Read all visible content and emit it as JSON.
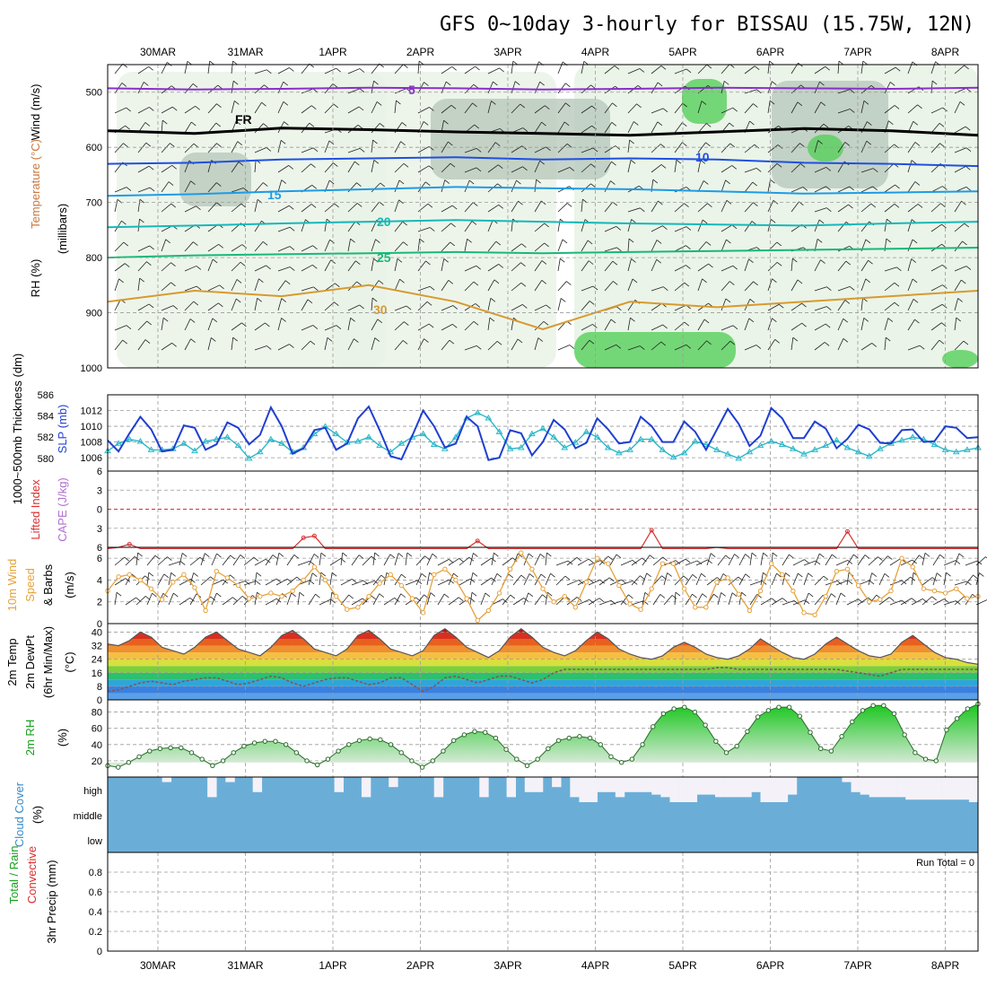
{
  "title": "GFS 0~10day 3-hourly for BISSAU (15.75W, 12N)",
  "dates": [
    "30MAR",
    "31MAR",
    "1APR",
    "2APR",
    "3APR",
    "4APR",
    "5APR",
    "6APR",
    "7APR",
    "8APR"
  ],
  "colors": {
    "temp_line": "#8b2fc9",
    "freezing": "#000000",
    "t5": "#1f4fe0",
    "t10": "#1e9be6",
    "t15": "#16b8b8",
    "t20": "#18b878",
    "t25": "#d89a2e",
    "rh_green": "#2ecc40",
    "slp": "#1f3fd0",
    "thickness": "#2ab7c8",
    "lifted": "#d93030",
    "wind10": "#e6a23a",
    "cloud": "#6aaed8"
  },
  "chart_data": [
    {
      "type": "area",
      "panel": "upper-air",
      "ylabel_parts": [
        "RH (%)",
        "Temperature (°C)",
        "Wind (m/s)"
      ],
      "ylabel_unit": "(millibars)",
      "y_ticks": [
        500,
        600,
        700,
        800,
        900,
        1000
      ],
      "ylim": [
        450,
        1000
      ],
      "y_reversed": true,
      "contour_labels": [
        "5",
        "FR",
        "10",
        "15",
        "20",
        "25",
        "30"
      ],
      "series": [
        {
          "name": "-5",
          "level_mb": [
            493,
            495,
            494,
            492,
            493,
            495,
            494,
            492,
            493,
            494,
            492
          ]
        },
        {
          "name": "FR",
          "level_mb": [
            570,
            575,
            565,
            568,
            572,
            575,
            578,
            572,
            566,
            570,
            578
          ]
        },
        {
          "name": "5",
          "level_mb": [
            630,
            628,
            622,
            620,
            618,
            622,
            620,
            622,
            628,
            630,
            634
          ]
        },
        {
          "name": "10",
          "level_mb": [
            688,
            685,
            680,
            676,
            672,
            674,
            676,
            680,
            684,
            682,
            680
          ]
        },
        {
          "name": "15",
          "level_mb": [
            745,
            742,
            738,
            735,
            732,
            735,
            738,
            740,
            742,
            738,
            735
          ]
        },
        {
          "name": "20",
          "level_mb": [
            800,
            796,
            794,
            792,
            790,
            792,
            790,
            788,
            786,
            784,
            782
          ]
        },
        {
          "name": "25",
          "level_mb": [
            880,
            860,
            870,
            850,
            880,
            930,
            880,
            890,
            880,
            870,
            860
          ]
        }
      ]
    },
    {
      "type": "line",
      "panel": "slp-thickness",
      "ylabel_left": "1000~500mb Thickness (dm)",
      "ylabel_right": "SLP (mb)",
      "thickness_ticks": [
        580,
        582,
        584,
        586
      ],
      "slp_ticks": [
        1006,
        1008,
        1010,
        1012
      ],
      "thickness_ylim": [
        578.8,
        586
      ],
      "slp_ylim": [
        1004.3,
        1014
      ],
      "slp": [
        1008.2,
        1006.8,
        1009.1,
        1011.2,
        1009.6,
        1006.8,
        1007.0,
        1010.1,
        1009.8,
        1007.0,
        1007.7,
        1010.5,
        1009.8,
        1007.7,
        1008.9,
        1012.4,
        1010.0,
        1006.5,
        1007.2,
        1009.5,
        1009.8,
        1007.0,
        1007.8,
        1011.0,
        1012.5,
        1009.5,
        1006.2,
        1005.8,
        1008.8,
        1012.0,
        1010.0,
        1007.3,
        1007.8,
        1011.2,
        1010.0,
        1005.7,
        1006.0,
        1009.5,
        1009.1,
        1006.3,
        1008.0,
        1010.8,
        1009.6,
        1007.2,
        1007.9,
        1011.0,
        1009.6,
        1007.8,
        1008.0,
        1011.2,
        1010.0,
        1008.0,
        1008.0,
        1010.6,
        1009.3,
        1007.0,
        1009.6,
        1012.2,
        1010.3,
        1007.5,
        1008.8,
        1012.3,
        1011.0,
        1008.5,
        1008.5,
        1010.6,
        1009.7,
        1007.2,
        1008.4,
        1010.2,
        1009.6,
        1007.9,
        1007.8,
        1009.5,
        1009.6,
        1008.0,
        1008.1,
        1010.0,
        1009.8,
        1008.5,
        1008.6
      ],
      "thickness": [
        580.7,
        581.4,
        581.8,
        581.6,
        580.8,
        580.8,
        580.9,
        581.4,
        580.7,
        581.6,
        581.8,
        582.0,
        581.2,
        580.0,
        580.6,
        581.8,
        581.4,
        580.6,
        581.0,
        582.3,
        583.0,
        582.3,
        581.5,
        581.6,
        582.0,
        581.2,
        580.6,
        581.4,
        582.0,
        582.3,
        581.3,
        580.9,
        582.0,
        583.8,
        584.3,
        583.8,
        582.5,
        580.9,
        581.0,
        582.3,
        582.8,
        582.0,
        581.0,
        581.5,
        582.5,
        582.0,
        581.0,
        580.5,
        580.8,
        581.8,
        581.8,
        580.8,
        580.1,
        580.5,
        581.6,
        581.3,
        580.8,
        580.4,
        580.0,
        580.6,
        581.2,
        581.6,
        581.3,
        580.9,
        580.4,
        580.8,
        581.2,
        581.7,
        581.0,
        580.6,
        580.2,
        580.9,
        581.4,
        581.7,
        582.0,
        581.8,
        581.3,
        580.8,
        580.6,
        580.8,
        581.0
      ]
    },
    {
      "type": "line",
      "panel": "cape-lifted",
      "ylabel_left": "Lifted Index",
      "ylabel_right": "CAPE (J/kg)",
      "y_ticks": [
        6,
        3,
        0,
        3,
        6
      ],
      "ylim": [
        -6,
        6
      ],
      "y_reversed": true,
      "lifted_index": [
        7.0,
        6.0,
        5.5,
        7.0,
        7.0,
        7.0,
        7.0,
        7.0,
        7.0,
        7.0,
        7.0,
        7.0,
        7.0,
        7.0,
        7.0,
        7.0,
        7.0,
        7.0,
        4.5,
        4.2,
        7.0,
        7.0,
        7.0,
        7.0,
        7.0,
        7.0,
        7.0,
        7.0,
        7.0,
        7.0,
        7.0,
        7.0,
        7.0,
        7.0,
        5.0,
        7.0,
        7.0,
        7.0,
        7.0,
        7.0,
        7.0,
        7.0,
        7.0,
        7.0,
        7.0,
        7.0,
        7.0,
        7.0,
        7.0,
        7.0,
        3.3,
        7.0,
        7.0,
        7.0,
        7.0,
        7.0,
        6.0,
        7.0,
        7.0,
        7.0,
        7.0,
        7.0,
        7.0,
        7.0,
        7.0,
        7.0,
        7.0,
        7.0,
        3.5,
        7.0,
        7.0,
        7.0,
        7.0,
        7.0,
        7.0,
        7.0,
        7.0,
        7.0,
        7.0,
        7.0,
        7.0
      ]
    },
    {
      "type": "line",
      "panel": "wind10m",
      "ylabel_parts": [
        "10m Wind",
        "Speed",
        "& Barbs"
      ],
      "ylabel_unit": "(m/s)",
      "y_ticks": [
        0,
        2,
        4,
        6
      ],
      "ylim": [
        0,
        7
      ],
      "speed": [
        3.0,
        4.3,
        4.5,
        4.0,
        3.2,
        2.2,
        3.8,
        4.5,
        3.3,
        1.2,
        4.8,
        4.2,
        3.5,
        2.3,
        2.5,
        2.8,
        2.5,
        3.0,
        4.0,
        5.2,
        4.0,
        2.5,
        1.3,
        1.5,
        2.5,
        3.7,
        4.5,
        3.5,
        2.3,
        1.0,
        4.5,
        5.0,
        4.0,
        2.3,
        0.3,
        1.2,
        2.8,
        5.0,
        6.5,
        5.0,
        3.2,
        2.0,
        2.5,
        1.5,
        3.8,
        6.0,
        5.5,
        3.5,
        1.8,
        1.3,
        3.2,
        5.5,
        5.5,
        3.2,
        1.5,
        1.5,
        3.8,
        4.2,
        2.7,
        1.2,
        3.0,
        5.5,
        4.5,
        3.0,
        1.0,
        0.8,
        2.5,
        4.8,
        5.0,
        3.5,
        2.0,
        2.2,
        3.0,
        6.0,
        5.2,
        3.2,
        3.0,
        2.8,
        3.2,
        2.3,
        2.5
      ]
    },
    {
      "type": "area",
      "panel": "temperature",
      "ylabel_parts": [
        "2m Temp",
        "2m DewPt",
        "(6hr Min/Max)"
      ],
      "ylabel_unit": "(°C)",
      "y_ticks": [
        0,
        8,
        16,
        24,
        32,
        40
      ],
      "ylim": [
        0,
        45
      ],
      "temperature": [
        33,
        32,
        35,
        40,
        37,
        31,
        29,
        27,
        31,
        37,
        40,
        35,
        30,
        28,
        26,
        31,
        38,
        41,
        36,
        30,
        28,
        26,
        30,
        38,
        41,
        36,
        30,
        28,
        26,
        29,
        38,
        42,
        37,
        31,
        28,
        25,
        29,
        37,
        42,
        37,
        31,
        28,
        26,
        29,
        35,
        40,
        36,
        30,
        27,
        25,
        24,
        26,
        31,
        34,
        31,
        27,
        25,
        24,
        26,
        30,
        36,
        32,
        28,
        25,
        24,
        27,
        33,
        37,
        33,
        29,
        26,
        25,
        27,
        34,
        38,
        33,
        28,
        25,
        24,
        22,
        21
      ],
      "dewpoint": [
        5,
        6,
        8,
        10,
        11,
        10,
        9,
        11,
        12,
        13,
        13,
        11,
        9,
        10,
        12,
        14,
        13,
        10,
        8,
        10,
        12,
        13,
        13,
        11,
        9,
        10,
        13,
        13,
        9,
        5,
        8,
        13,
        14,
        12,
        10,
        12,
        14,
        14,
        12,
        10,
        12,
        16,
        18,
        18,
        18,
        18,
        18,
        18,
        18,
        18,
        18,
        18,
        18,
        18,
        18,
        18,
        19,
        19,
        18,
        18,
        18,
        18,
        18,
        18,
        18,
        18,
        18,
        18,
        17,
        16,
        15,
        14,
        16,
        18,
        18,
        18,
        18,
        18,
        18,
        18,
        18
      ]
    },
    {
      "type": "area",
      "panel": "rh2m",
      "ylabel": "2m RH",
      "ylabel_unit": "(%)",
      "y_ticks": [
        20,
        40,
        60,
        80
      ],
      "ylim": [
        0,
        95
      ],
      "rh": [
        14,
        12,
        18,
        25,
        32,
        35,
        36,
        36,
        30,
        22,
        14,
        20,
        30,
        38,
        42,
        44,
        44,
        40,
        30,
        20,
        15,
        22,
        32,
        40,
        45,
        47,
        46,
        40,
        30,
        20,
        12,
        20,
        32,
        45,
        52,
        56,
        55,
        48,
        34,
        22,
        14,
        22,
        35,
        45,
        48,
        50,
        48,
        40,
        25,
        18,
        22,
        40,
        62,
        78,
        84,
        86,
        80,
        64,
        44,
        30,
        38,
        56,
        74,
        82,
        86,
        86,
        75,
        55,
        35,
        32,
        50,
        68,
        82,
        88,
        88,
        78,
        52,
        30,
        22,
        20,
        58,
        72,
        84,
        90
      ]
    },
    {
      "type": "bar",
      "panel": "cloud",
      "ylabel": "Cloud Cover",
      "ylabel_unit": "(%)",
      "category_labels": [
        "high",
        "middle",
        "low"
      ],
      "high": [
        100,
        100,
        100,
        100,
        100,
        100,
        80,
        100,
        100,
        100,
        100,
        20,
        100,
        80,
        100,
        100,
        40,
        100,
        100,
        100,
        100,
        100,
        100,
        100,
        100,
        40,
        100,
        100,
        20,
        100,
        100,
        60,
        100,
        100,
        100,
        100,
        20,
        100,
        100,
        100,
        100,
        20,
        100,
        100,
        20,
        100,
        40,
        40,
        100,
        60,
        100,
        20,
        0,
        0,
        40,
        40,
        20,
        40,
        40,
        40,
        30,
        20,
        0,
        0,
        0,
        30,
        30,
        20,
        20,
        20,
        20,
        40,
        0,
        0,
        0,
        30,
        100,
        100,
        100,
        100,
        100,
        80,
        40,
        30,
        20,
        20,
        20,
        20,
        10,
        10,
        10,
        10,
        10,
        10,
        10,
        0
      ],
      "middle": [
        0,
        0,
        0,
        0,
        0,
        0,
        0,
        0,
        0,
        0,
        0,
        0,
        0,
        0,
        0,
        0,
        0,
        0,
        0,
        0,
        0,
        0,
        0,
        0,
        0,
        0,
        0,
        0,
        0,
        0,
        0,
        0,
        0,
        0,
        0,
        0,
        0,
        0,
        0,
        0,
        0,
        0,
        0,
        0,
        0,
        0,
        0,
        0,
        0,
        0,
        0,
        0,
        0,
        0,
        0,
        0,
        0,
        0,
        0,
        0,
        0,
        0,
        100,
        0,
        0,
        0,
        0,
        0,
        0,
        0,
        100,
        100,
        100,
        100,
        0,
        0,
        0,
        0,
        0,
        0,
        100,
        100,
        0,
        0,
        0,
        0,
        0,
        0,
        0,
        0,
        0,
        0,
        0,
        0,
        0,
        0
      ],
      "low": [
        0,
        0,
        0,
        0,
        0,
        0,
        0,
        0,
        0,
        0,
        0,
        0,
        0,
        0,
        0,
        0,
        0,
        0,
        0,
        0,
        0,
        0,
        0,
        0,
        0,
        0,
        0,
        0,
        0,
        0,
        0,
        0,
        0,
        0,
        0,
        0,
        0,
        0,
        0,
        0,
        0,
        0,
        0,
        0,
        0,
        0,
        0,
        0,
        0,
        0,
        0,
        0,
        0,
        0,
        0,
        0,
        0,
        0,
        0,
        0,
        0,
        0,
        0,
        0,
        0,
        0,
        0,
        0,
        0,
        0,
        0,
        0,
        0,
        0,
        0,
        0,
        0,
        0,
        0,
        0,
        0,
        0,
        0,
        0,
        0,
        0,
        0,
        0,
        0,
        0,
        0,
        0,
        0,
        0,
        0,
        0
      ]
    },
    {
      "type": "bar",
      "panel": "precip",
      "ylabel_parts": [
        "Total / Rain",
        "Convective"
      ],
      "ylabel": "3hr Precip (mm)",
      "y_ticks": [
        0,
        0.2,
        0.4,
        0.6,
        0.8
      ],
      "ylim": [
        0,
        1
      ],
      "run_total_text": "Run Total = 0",
      "values": []
    }
  ]
}
